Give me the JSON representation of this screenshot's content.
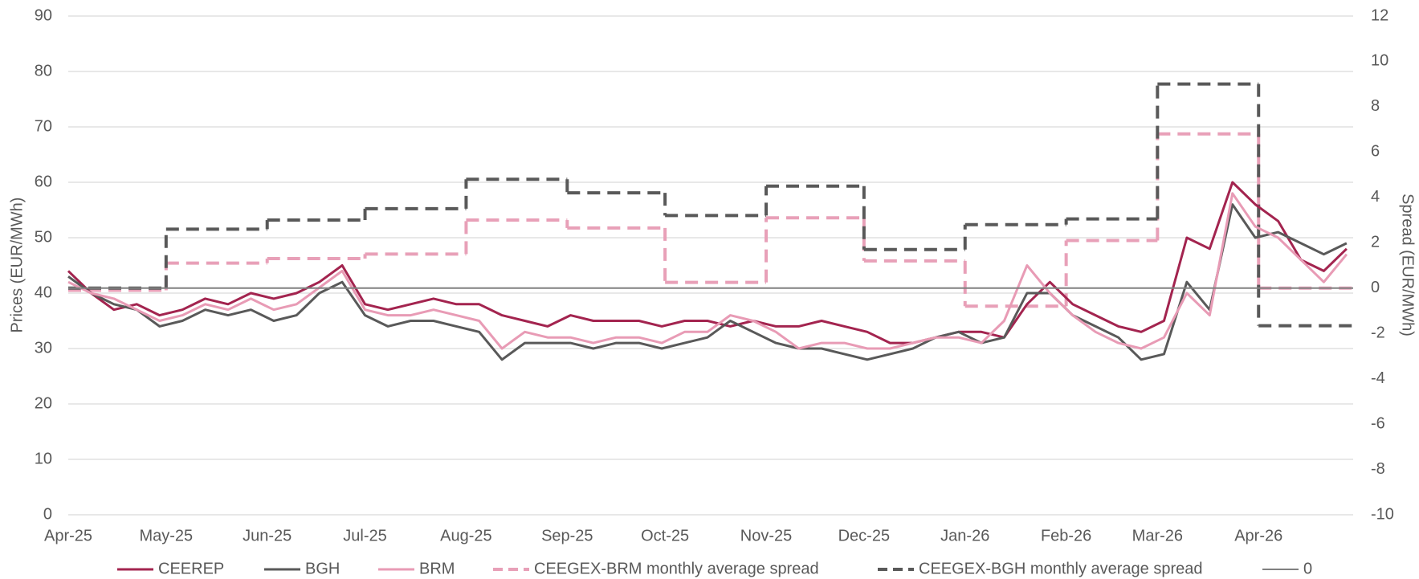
{
  "chart_data": {
    "type": "line",
    "y_label": "Prices (EUR/MWh)",
    "y2_label": "Spread (EUR/MWh)",
    "xlim": [
      0,
      394
    ],
    "xticks": [
      {
        "value": 0,
        "label": "Apr-25"
      },
      {
        "value": 30,
        "label": "May-25"
      },
      {
        "value": 61,
        "label": "Jun-25"
      },
      {
        "value": 91,
        "label": "Jul-25"
      },
      {
        "value": 122,
        "label": "Aug-25"
      },
      {
        "value": 153,
        "label": "Sep-25"
      },
      {
        "value": 183,
        "label": "Oct-25"
      },
      {
        "value": 214,
        "label": "Nov-25"
      },
      {
        "value": 244,
        "label": "Dec-25"
      },
      {
        "value": 275,
        "label": "Jan-26"
      },
      {
        "value": 306,
        "label": "Feb-26"
      },
      {
        "value": 334,
        "label": "Mar-26"
      },
      {
        "value": 365,
        "label": "Apr-26"
      }
    ],
    "ylim": [
      0,
      90
    ],
    "yticks": [
      0,
      10,
      20,
      30,
      40,
      50,
      60,
      70,
      80,
      90
    ],
    "y2lim": [
      -10,
      12
    ],
    "y2ticks": [
      -10,
      -8,
      -6,
      -4,
      -2,
      0,
      2,
      4,
      6,
      8,
      10,
      12
    ],
    "grid": true,
    "legend": "bottom",
    "series": [
      {
        "name": "CEEREP",
        "color": "#a3244f",
        "style": "solid",
        "x": [
          0,
          7,
          14,
          21,
          28,
          35,
          42,
          49,
          56,
          63,
          70,
          77,
          84,
          91,
          98,
          105,
          112,
          119,
          126,
          133,
          140,
          147,
          154,
          161,
          168,
          175,
          182,
          189,
          196,
          203,
          210,
          217,
          224,
          231,
          238,
          245,
          252,
          259,
          266,
          273,
          280,
          287,
          294,
          301,
          308,
          315,
          322,
          329,
          336,
          343,
          350,
          357,
          364,
          371,
          378,
          385,
          392
        ],
        "values": [
          44,
          40,
          37,
          38,
          36,
          37,
          39,
          38,
          40,
          39,
          40,
          42,
          45,
          38,
          37,
          38,
          39,
          38,
          38,
          36,
          35,
          34,
          36,
          35,
          35,
          35,
          34,
          35,
          35,
          34,
          35,
          34,
          34,
          35,
          34,
          33,
          31,
          31,
          32,
          33,
          33,
          32,
          38,
          42,
          38,
          36,
          34,
          33,
          35,
          50,
          48,
          60,
          56,
          53,
          46,
          44,
          48
        ]
      },
      {
        "name": "BGH",
        "color": "#595959",
        "style": "solid",
        "x": [
          0,
          7,
          14,
          21,
          28,
          35,
          42,
          49,
          56,
          63,
          70,
          77,
          84,
          91,
          98,
          105,
          112,
          119,
          126,
          133,
          140,
          147,
          154,
          161,
          168,
          175,
          182,
          189,
          196,
          203,
          210,
          217,
          224,
          231,
          238,
          245,
          252,
          259,
          266,
          273,
          280,
          287,
          294,
          301,
          308,
          315,
          322,
          329,
          336,
          343,
          350,
          357,
          364,
          371,
          378,
          385,
          392
        ],
        "values": [
          43,
          40,
          38,
          37,
          34,
          35,
          37,
          36,
          37,
          35,
          36,
          40,
          42,
          36,
          34,
          35,
          35,
          34,
          33,
          28,
          31,
          31,
          31,
          30,
          31,
          31,
          30,
          31,
          32,
          35,
          33,
          31,
          30,
          30,
          29,
          28,
          29,
          30,
          32,
          33,
          31,
          32,
          40,
          40,
          36,
          34,
          32,
          28,
          29,
          42,
          37,
          56,
          50,
          51,
          49,
          47,
          49
        ]
      },
      {
        "name": "BRM",
        "color": "#e89bb5",
        "style": "solid",
        "x": [
          0,
          7,
          14,
          21,
          28,
          35,
          42,
          49,
          56,
          63,
          70,
          77,
          84,
          91,
          98,
          105,
          112,
          119,
          126,
          133,
          140,
          147,
          154,
          161,
          168,
          175,
          182,
          189,
          196,
          203,
          210,
          217,
          224,
          231,
          238,
          245,
          252,
          259,
          266,
          273,
          280,
          287,
          294,
          301,
          308,
          315,
          322,
          329,
          336,
          343,
          350,
          357,
          364,
          371,
          378,
          385,
          392
        ],
        "values": [
          42,
          40,
          39,
          37,
          35,
          36,
          38,
          37,
          39,
          37,
          38,
          41,
          44,
          37,
          36,
          36,
          37,
          36,
          35,
          30,
          33,
          32,
          32,
          31,
          32,
          32,
          31,
          33,
          33,
          36,
          35,
          33,
          30,
          31,
          31,
          30,
          30,
          31,
          32,
          32,
          31,
          35,
          45,
          40,
          36,
          33,
          31,
          30,
          32,
          40,
          36,
          58,
          52,
          50,
          46,
          42,
          47
        ]
      },
      {
        "name": "CEEGEX-BRM monthly average spread",
        "color": "#e8a0b8",
        "style": "dashed",
        "axis": "y2",
        "x": [
          0,
          30,
          61,
          91,
          122,
          153,
          183,
          214,
          244,
          275,
          306,
          334,
          365
        ],
        "values": [
          -0.1,
          1.1,
          1.3,
          1.5,
          3.0,
          2.65,
          0.25,
          3.1,
          1.2,
          -0.8,
          2.1,
          6.8,
          0.0
        ]
      },
      {
        "name": "CEEGEX-BGH monthly average spread",
        "color": "#595959",
        "style": "dashed",
        "axis": "y2",
        "x": [
          0,
          30,
          61,
          91,
          122,
          153,
          183,
          214,
          244,
          275,
          306,
          334,
          365
        ],
        "values": [
          0.0,
          2.6,
          3.0,
          3.5,
          4.8,
          4.2,
          3.2,
          4.5,
          1.7,
          2.8,
          3.05,
          9.0,
          -1.66
        ]
      },
      {
        "name": "0",
        "color": "#808080",
        "style": "thin",
        "axis": "y2",
        "x": [
          0,
          394
        ],
        "values": [
          0,
          0
        ]
      }
    ]
  }
}
